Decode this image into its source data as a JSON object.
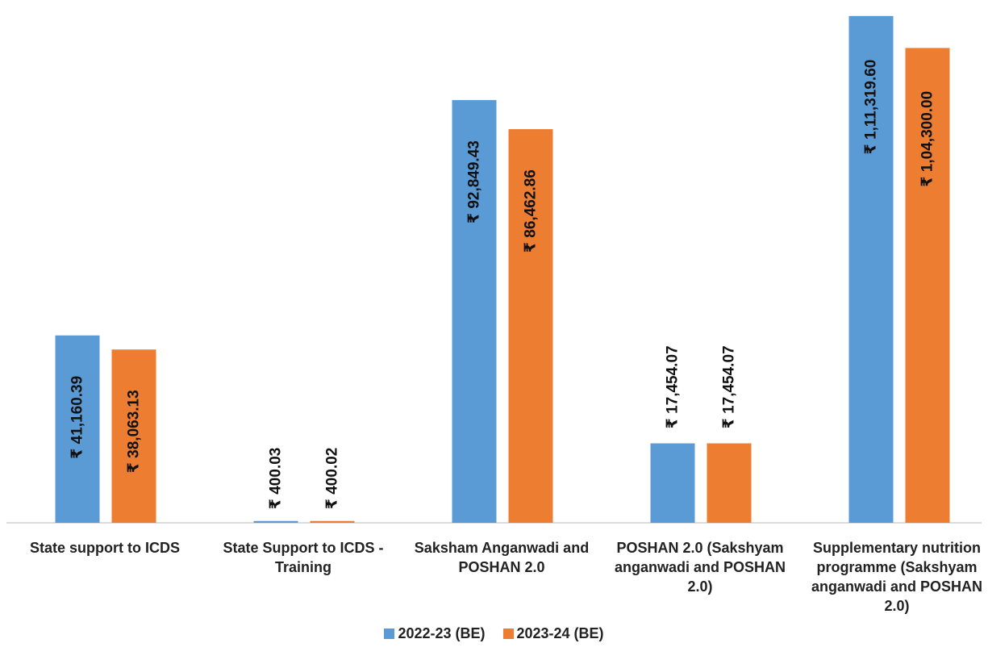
{
  "chart_data": {
    "type": "bar",
    "categories": [
      "State support to ICDS",
      "State Support to ICDS - Training",
      "Saksham Anganwadi and POSHAN 2.0",
      "POSHAN 2.0 (Sakshyam anganwadi and POSHAN 2.0)",
      "Supplementary nutrition programme (Sakshyam anganwadi and POSHAN 2.0)"
    ],
    "series": [
      {
        "name": "2022-23 (BE)",
        "color": "#5B9BD5",
        "values": [
          41160.39,
          400.03,
          92849.43,
          17454.07,
          111319.6
        ],
        "labels": [
          "₹ 41,160.39",
          "₹ 400.03",
          "₹ 92,849.43",
          "₹ 17,454.07",
          "₹ 1,11,319.60"
        ]
      },
      {
        "name": "2023-24 (BE)",
        "color": "#ED7D31",
        "values": [
          38063.13,
          400.02,
          86462.86,
          17454.07,
          104300.0
        ],
        "labels": [
          "₹ 38,063.13",
          "₹ 400.02",
          "₹ 86,462.86",
          "₹ 17,454.07",
          "₹ 1,04,300.00"
        ]
      }
    ],
    "legend_position": "bottom",
    "grid": false,
    "ylim": [
      0,
      112000
    ]
  }
}
